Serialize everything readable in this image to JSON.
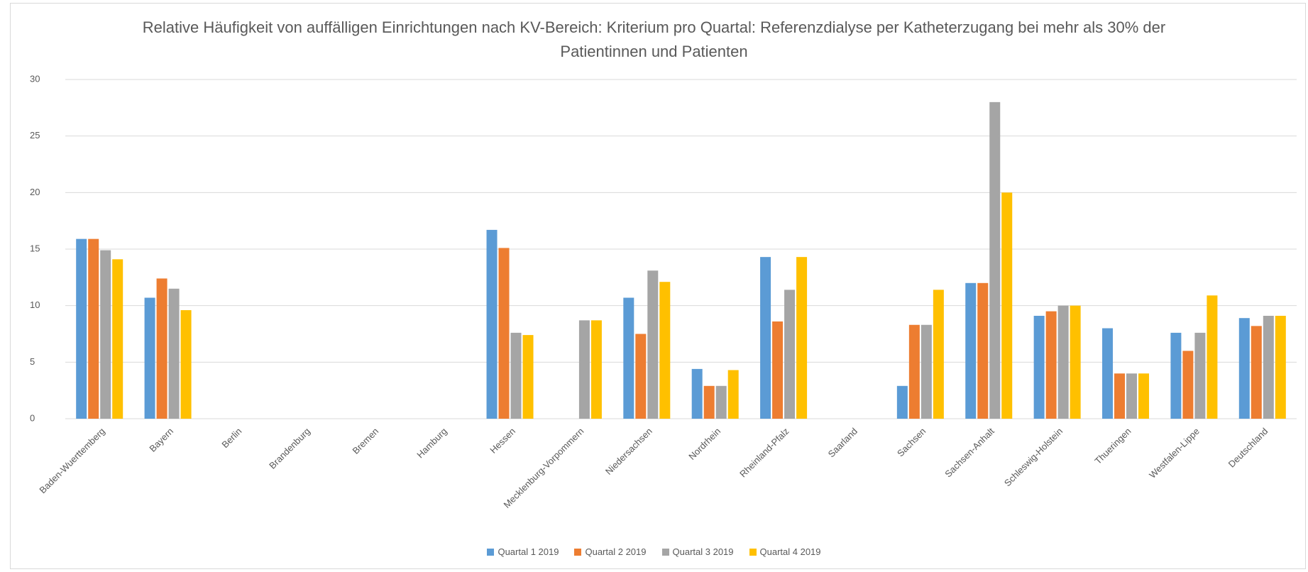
{
  "chart_data": {
    "type": "bar",
    "title": "Relative Häufigkeit von auffälligen Einrichtungen nach KV-Bereich: Kriterium pro Quartal: Referenzdialyse per Katheterzugang bei mehr als 30% der Patientinnen und Patienten",
    "categories": [
      "Baden-Wuerttemberg",
      "Bayern",
      "Berlin",
      "Brandenburg",
      "Bremen",
      "Hamburg",
      "Hessen",
      "Mecklenburg-Vorpommern",
      "Niedersachsen",
      "Nordrhein",
      "Rheinland-Pfalz",
      "Saarland",
      "Sachsen",
      "Sachsen-Anhalt",
      "Schleswig-Holstein",
      "Thueringen",
      "Westfalen-Lippe",
      "Deutschland"
    ],
    "series": [
      {
        "name": "Quartal 1 2019",
        "color": "#5b9bd5",
        "values": [
          15.9,
          10.7,
          0,
          0,
          0,
          0,
          16.7,
          0,
          10.7,
          4.4,
          14.3,
          0,
          2.9,
          12,
          9.1,
          8,
          7.6,
          8.9
        ]
      },
      {
        "name": "Quartal 2 2019",
        "color": "#ed7d31",
        "values": [
          15.9,
          12.4,
          0,
          0,
          0,
          0,
          15.1,
          0,
          7.5,
          2.9,
          8.6,
          0,
          8.3,
          12,
          9.5,
          4,
          6,
          8.2
        ]
      },
      {
        "name": "Quartal 3 2019",
        "color": "#a5a5a5",
        "values": [
          14.9,
          11.5,
          0,
          0,
          0,
          0,
          7.6,
          8.7,
          13.1,
          2.9,
          11.4,
          0,
          8.3,
          28,
          10,
          4,
          7.6,
          9.1
        ]
      },
      {
        "name": "Quartal 4 2019",
        "color": "#ffc000",
        "values": [
          14.1,
          9.6,
          0,
          0,
          0,
          0,
          7.4,
          8.7,
          12.1,
          4.3,
          14.3,
          0,
          11.4,
          20,
          10,
          4,
          10.9,
          9.1
        ]
      }
    ],
    "ylim": [
      0,
      30
    ],
    "yticks": [
      0,
      5,
      10,
      15,
      20,
      25,
      30
    ],
    "grid": true,
    "legend": "bottom"
  }
}
